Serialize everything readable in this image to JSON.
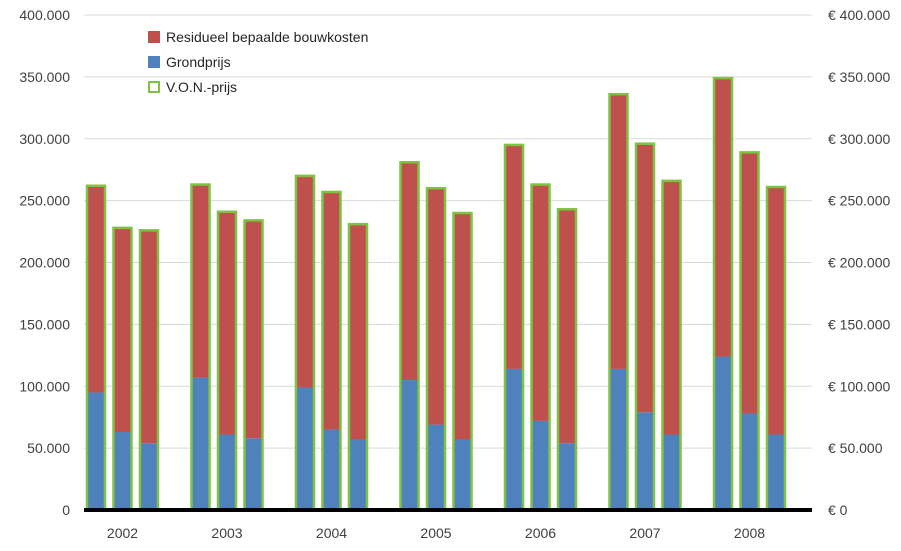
{
  "chart_data": {
    "type": "bar",
    "stacked": true,
    "categories": [
      "2002",
      "2003",
      "2004",
      "2005",
      "2006",
      "2007",
      "2008"
    ],
    "bars_per_category": 3,
    "series": [
      {
        "name": "Residueel bepaalde bouwkosten",
        "color": "#c0504d",
        "values": [
          [
            167000,
            165000,
            172000
          ],
          [
            156000,
            180000,
            176000
          ],
          [
            171000,
            192000,
            174000
          ],
          [
            176000,
            191000,
            183000
          ],
          [
            181000,
            191000,
            189000
          ],
          [
            222000,
            217000,
            205000
          ],
          [
            225000,
            211000,
            200000
          ]
        ]
      },
      {
        "name": "Grondprijs",
        "color": "#4f81bd",
        "values": [
          [
            95000,
            63000,
            54000
          ],
          [
            107000,
            61000,
            58000
          ],
          [
            99000,
            65000,
            57000
          ],
          [
            105000,
            69000,
            57000
          ],
          [
            114000,
            72000,
            54000
          ],
          [
            114000,
            79000,
            61000
          ],
          [
            124000,
            78000,
            61000
          ]
        ]
      },
      {
        "name": "V.O.N.-prijs",
        "color": "#7dc242",
        "style": "outline",
        "values": [
          [
            262000,
            228000,
            226000
          ],
          [
            263000,
            241000,
            234000
          ],
          [
            270000,
            257000,
            231000
          ],
          [
            281000,
            260000,
            240000
          ],
          [
            295000,
            263000,
            243000
          ],
          [
            336000,
            296000,
            266000
          ],
          [
            349000,
            289000,
            261000
          ]
        ]
      }
    ],
    "ylim": [
      0,
      400000
    ],
    "yticks_left": [
      "0",
      "50.000",
      "100.000",
      "150.000",
      "200.000",
      "250.000",
      "300.000",
      "350.000",
      "400.000"
    ],
    "yticks_right": [
      "€ 0",
      "€ 50.000",
      "€ 100.000",
      "€ 150.000",
      "€ 200.000",
      "€ 250.000",
      "€ 300.000",
      "€ 350.000",
      "€ 400.000"
    ],
    "legend": {
      "placement": "top-left",
      "entries": [
        "Residueel bepaalde bouwkosten",
        "Grondprijs",
        "V.O.N.-prijs"
      ]
    },
    "grid": true,
    "title": "",
    "xlabel": "",
    "ylabel": ""
  }
}
